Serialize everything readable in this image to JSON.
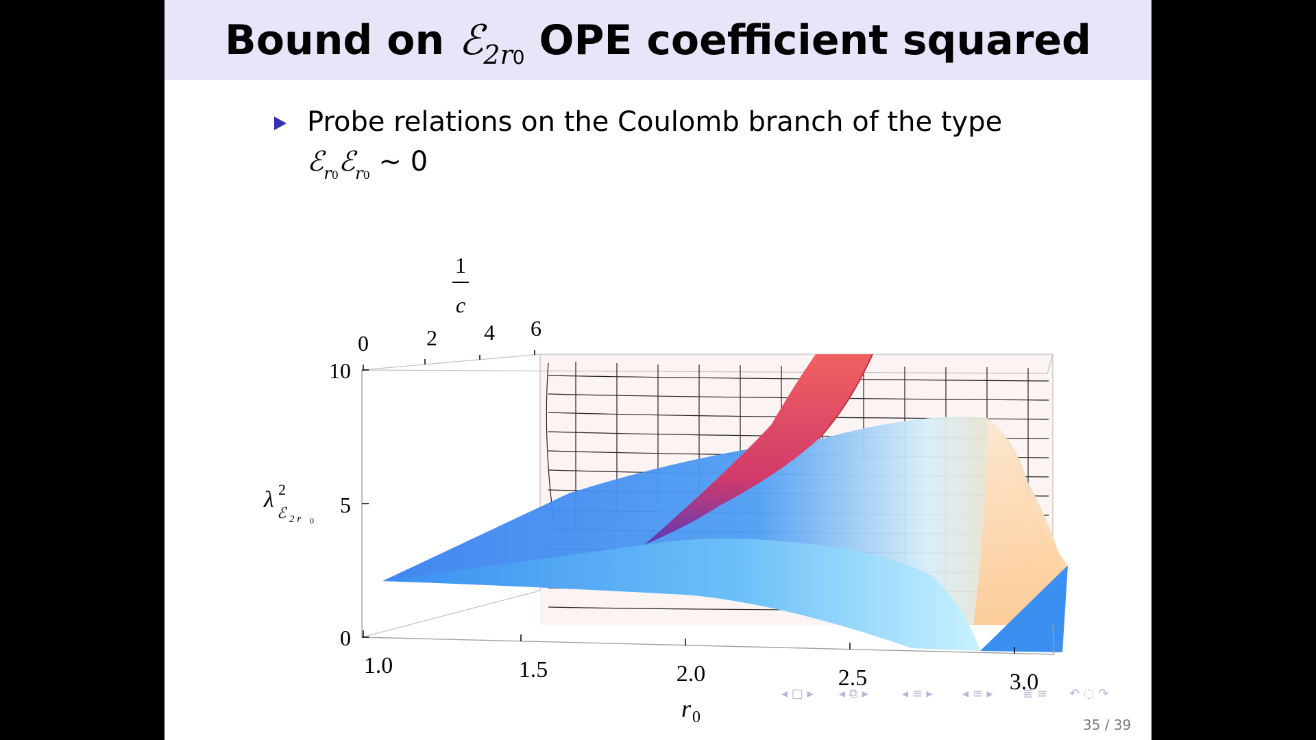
{
  "slide": {
    "title": {
      "prefix": "Bound on ",
      "symbol": "ℰ",
      "subscript": "2r",
      "subscript_index": "0",
      "suffix": " OPE coefficient squared"
    },
    "bullet": {
      "text": "Probe relations on the Coulomb branch of the type",
      "math_symbol": "ℰ",
      "math_sub": "r",
      "math_sub_index": "0",
      "math_tail": "∼ 0"
    },
    "plot": {
      "z_label_main": "λ",
      "z_label_sup": "2",
      "z_label_sub": "ℰ",
      "z_label_sub_idx": "2 r",
      "z_label_sub_idx0": "0",
      "z_ticks": [
        "10",
        "5",
        "0"
      ],
      "x_label": "r",
      "x_label_idx": "0",
      "x_ticks": [
        "1.0",
        "1.5",
        "2.0",
        "2.5",
        "3.0"
      ],
      "y_label_num": "1",
      "y_label_den": "c",
      "y_ticks": [
        "0",
        "2",
        "4",
        "6"
      ]
    },
    "page_number": "35 / 39",
    "colors": {
      "title_bar": "#e6e6f8",
      "bullet": "#3333b2",
      "surface_red": "#e0404a",
      "surface_blue": "#3a8ff0"
    }
  }
}
